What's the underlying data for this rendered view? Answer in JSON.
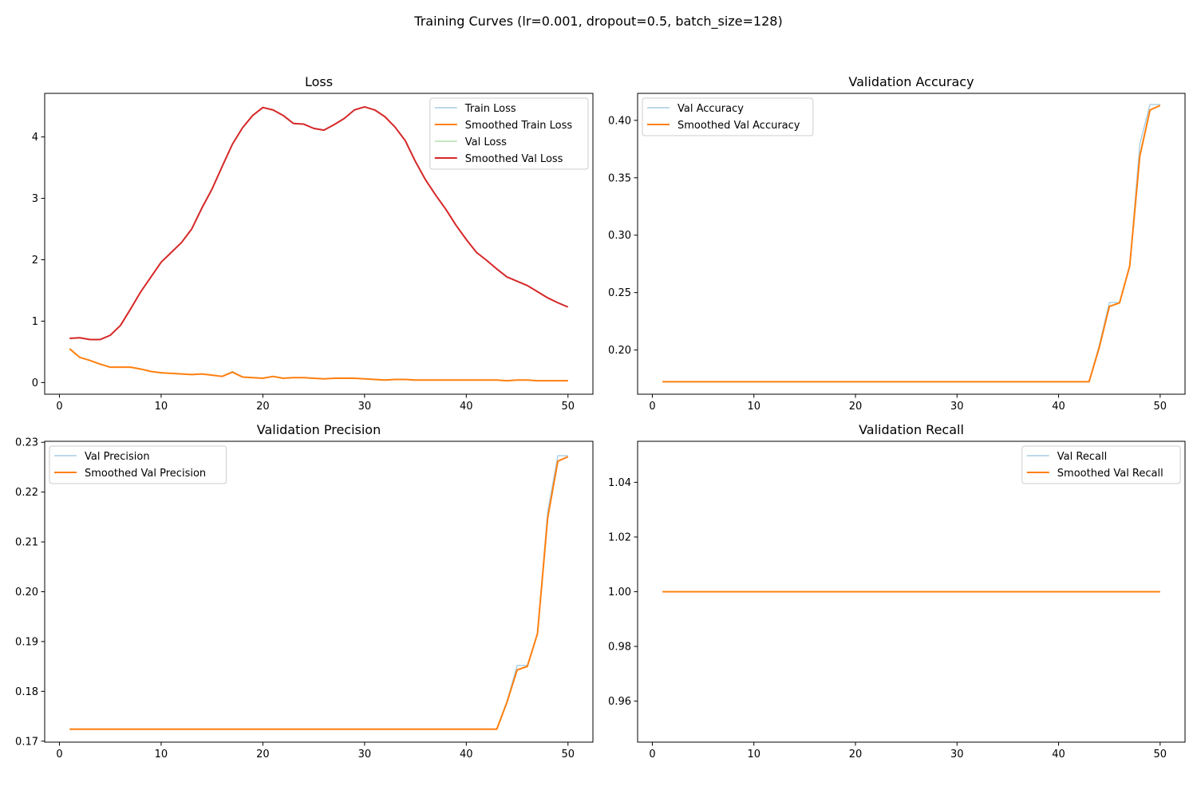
{
  "figure": {
    "suptitle": "Training Curves (lr=0.001, dropout=0.5, batch_size=128)"
  },
  "chart_data": [
    {
      "type": "line",
      "title": "Loss",
      "xlabel": "",
      "ylabel": "",
      "xlim": [
        -1.45,
        52.45
      ],
      "ylim": [
        -0.19,
        4.71
      ],
      "xticks": [
        0,
        10,
        20,
        30,
        40,
        50
      ],
      "yticks": [
        0,
        1,
        2,
        3,
        4
      ],
      "yprecision": 0,
      "grid": false,
      "legend_position": "top-right",
      "x": [
        1,
        2,
        3,
        4,
        5,
        6,
        7,
        8,
        9,
        10,
        11,
        12,
        13,
        14,
        15,
        16,
        17,
        18,
        19,
        20,
        21,
        22,
        23,
        24,
        25,
        26,
        27,
        28,
        29,
        30,
        31,
        32,
        33,
        34,
        35,
        36,
        37,
        38,
        39,
        40,
        41,
        42,
        43,
        44,
        45,
        46,
        47,
        48,
        49,
        50
      ],
      "series": [
        {
          "name": "Train Loss",
          "color": "#a6cee3",
          "width": 1.4,
          "values": [
            0.55,
            0.41,
            0.36,
            0.3,
            0.25,
            0.25,
            0.25,
            0.22,
            0.18,
            0.16,
            0.15,
            0.14,
            0.13,
            0.14,
            0.12,
            0.1,
            0.18,
            0.09,
            0.08,
            0.07,
            0.1,
            0.07,
            0.08,
            0.08,
            0.07,
            0.06,
            0.07,
            0.07,
            0.07,
            0.06,
            0.05,
            0.04,
            0.05,
            0.05,
            0.04,
            0.04,
            0.04,
            0.04,
            0.04,
            0.04,
            0.04,
            0.04,
            0.04,
            0.03,
            0.04,
            0.04,
            0.03,
            0.03,
            0.03,
            0.03
          ]
        },
        {
          "name": "Smoothed Train Loss",
          "color": "#ff7f0e",
          "width": 2,
          "values": [
            0.55,
            0.41,
            0.36,
            0.3,
            0.25,
            0.25,
            0.25,
            0.22,
            0.18,
            0.16,
            0.15,
            0.14,
            0.13,
            0.14,
            0.12,
            0.1,
            0.17,
            0.09,
            0.08,
            0.07,
            0.1,
            0.07,
            0.08,
            0.08,
            0.07,
            0.06,
            0.07,
            0.07,
            0.07,
            0.06,
            0.05,
            0.04,
            0.05,
            0.05,
            0.04,
            0.04,
            0.04,
            0.04,
            0.04,
            0.04,
            0.04,
            0.04,
            0.04,
            0.03,
            0.04,
            0.04,
            0.03,
            0.03,
            0.03,
            0.03
          ]
        },
        {
          "name": "Val Loss",
          "color": "#b2dfaa",
          "width": 1.4,
          "values": [
            0.72,
            0.73,
            0.7,
            0.7,
            0.77,
            0.93,
            1.2,
            1.48,
            1.72,
            1.96,
            2.12,
            2.28,
            2.5,
            2.85,
            3.15,
            3.52,
            3.88,
            4.15,
            4.35,
            4.48,
            4.44,
            4.35,
            4.22,
            4.21,
            4.14,
            4.11,
            4.2,
            4.3,
            4.44,
            4.49,
            4.44,
            4.33,
            4.16,
            3.94,
            3.6,
            3.3,
            3.05,
            2.82,
            2.56,
            2.33,
            2.12,
            1.99,
            1.85,
            1.72,
            1.65,
            1.58,
            1.48,
            1.38,
            1.3,
            1.23
          ]
        },
        {
          "name": "Smoothed Val Loss",
          "color": "#d62728",
          "width": 2,
          "values": [
            0.72,
            0.73,
            0.7,
            0.7,
            0.77,
            0.93,
            1.2,
            1.48,
            1.72,
            1.96,
            2.12,
            2.28,
            2.5,
            2.84,
            3.15,
            3.52,
            3.88,
            4.15,
            4.35,
            4.48,
            4.44,
            4.35,
            4.22,
            4.21,
            4.14,
            4.11,
            4.2,
            4.3,
            4.44,
            4.49,
            4.44,
            4.33,
            4.16,
            3.94,
            3.6,
            3.3,
            3.05,
            2.82,
            2.56,
            2.33,
            2.12,
            1.99,
            1.85,
            1.72,
            1.65,
            1.58,
            1.48,
            1.38,
            1.3,
            1.23
          ]
        }
      ]
    },
    {
      "type": "line",
      "title": "Validation Accuracy",
      "xlabel": "",
      "ylabel": "",
      "xlim": [
        -1.45,
        52.45
      ],
      "ylim": [
        0.1615,
        0.4235
      ],
      "xticks": [
        0,
        10,
        20,
        30,
        40,
        50
      ],
      "yticks": [
        0.2,
        0.25,
        0.3,
        0.35,
        0.4
      ],
      "yprecision": 2,
      "grid": false,
      "legend_position": "top-left",
      "x": [
        1,
        2,
        3,
        4,
        5,
        6,
        7,
        8,
        9,
        10,
        11,
        12,
        13,
        14,
        15,
        16,
        17,
        18,
        19,
        20,
        21,
        22,
        23,
        24,
        25,
        26,
        27,
        28,
        29,
        30,
        31,
        32,
        33,
        34,
        35,
        36,
        37,
        38,
        39,
        40,
        41,
        42,
        43,
        44,
        45,
        46,
        47,
        48,
        49,
        50
      ],
      "series": [
        {
          "name": "Val Accuracy",
          "color": "#a6cee3",
          "width": 1.4,
          "values": [
            0.1724,
            0.1724,
            0.1724,
            0.1724,
            0.1724,
            0.1724,
            0.1724,
            0.1724,
            0.1724,
            0.1724,
            0.1724,
            0.1724,
            0.1724,
            0.1724,
            0.1724,
            0.1724,
            0.1724,
            0.1724,
            0.1724,
            0.1724,
            0.1724,
            0.1724,
            0.1724,
            0.1724,
            0.1724,
            0.1724,
            0.1724,
            0.1724,
            0.1724,
            0.1724,
            0.1724,
            0.1724,
            0.1724,
            0.1724,
            0.1724,
            0.1724,
            0.1724,
            0.1724,
            0.1724,
            0.1724,
            0.1724,
            0.1724,
            0.1724,
            0.204,
            0.2414,
            0.2414,
            0.273,
            0.3793,
            0.4138,
            0.4138
          ]
        },
        {
          "name": "Smoothed Val Accuracy",
          "color": "#ff7f0e",
          "width": 2,
          "values": [
            0.1724,
            0.1724,
            0.1724,
            0.1724,
            0.1724,
            0.1724,
            0.1724,
            0.1724,
            0.1724,
            0.1724,
            0.1724,
            0.1724,
            0.1724,
            0.1724,
            0.1724,
            0.1724,
            0.1724,
            0.1724,
            0.1724,
            0.1724,
            0.1724,
            0.1724,
            0.1724,
            0.1724,
            0.1724,
            0.1724,
            0.1724,
            0.1724,
            0.1724,
            0.1724,
            0.1724,
            0.1724,
            0.1724,
            0.1724,
            0.1724,
            0.1724,
            0.1724,
            0.1724,
            0.1724,
            0.1724,
            0.1724,
            0.1724,
            0.1724,
            0.202,
            0.238,
            0.241,
            0.273,
            0.369,
            0.409,
            0.413
          ]
        }
      ]
    },
    {
      "type": "line",
      "title": "Validation Precision",
      "xlabel": "",
      "ylabel": "",
      "xlim": [
        -1.45,
        52.45
      ],
      "ylim": [
        0.1698,
        0.2302
      ],
      "xticks": [
        0,
        10,
        20,
        30,
        40,
        50
      ],
      "yticks": [
        0.17,
        0.18,
        0.19,
        0.2,
        0.21,
        0.22,
        0.23
      ],
      "yprecision": 2,
      "grid": false,
      "legend_position": "top-left",
      "x": [
        1,
        2,
        3,
        4,
        5,
        6,
        7,
        8,
        9,
        10,
        11,
        12,
        13,
        14,
        15,
        16,
        17,
        18,
        19,
        20,
        21,
        22,
        23,
        24,
        25,
        26,
        27,
        28,
        29,
        30,
        31,
        32,
        33,
        34,
        35,
        36,
        37,
        38,
        39,
        40,
        41,
        42,
        43,
        44,
        45,
        46,
        47,
        48,
        49,
        50
      ],
      "series": [
        {
          "name": "Val Precision",
          "color": "#a6cee3",
          "width": 1.4,
          "values": [
            0.1724,
            0.1724,
            0.1724,
            0.1724,
            0.1724,
            0.1724,
            0.1724,
            0.1724,
            0.1724,
            0.1724,
            0.1724,
            0.1724,
            0.1724,
            0.1724,
            0.1724,
            0.1724,
            0.1724,
            0.1724,
            0.1724,
            0.1724,
            0.1724,
            0.1724,
            0.1724,
            0.1724,
            0.1724,
            0.1724,
            0.1724,
            0.1724,
            0.1724,
            0.1724,
            0.1724,
            0.1724,
            0.1724,
            0.1724,
            0.1724,
            0.1724,
            0.1724,
            0.1724,
            0.1724,
            0.1724,
            0.1724,
            0.1724,
            0.1724,
            0.178,
            0.1852,
            0.1852,
            0.1916,
            0.216,
            0.2273,
            0.2273
          ]
        },
        {
          "name": "Smoothed Val Precision",
          "color": "#ff7f0e",
          "width": 2,
          "values": [
            0.1724,
            0.1724,
            0.1724,
            0.1724,
            0.1724,
            0.1724,
            0.1724,
            0.1724,
            0.1724,
            0.1724,
            0.1724,
            0.1724,
            0.1724,
            0.1724,
            0.1724,
            0.1724,
            0.1724,
            0.1724,
            0.1724,
            0.1724,
            0.1724,
            0.1724,
            0.1724,
            0.1724,
            0.1724,
            0.1724,
            0.1724,
            0.1724,
            0.1724,
            0.1724,
            0.1724,
            0.1724,
            0.1724,
            0.1724,
            0.1724,
            0.1724,
            0.1724,
            0.1724,
            0.1724,
            0.1724,
            0.1724,
            0.1724,
            0.1724,
            0.1778,
            0.1843,
            0.185,
            0.1916,
            0.2148,
            0.2262,
            0.2271
          ]
        }
      ]
    },
    {
      "type": "line",
      "title": "Validation Recall",
      "xlabel": "",
      "ylabel": "",
      "xlim": [
        -1.45,
        52.45
      ],
      "ylim": [
        0.945,
        1.055
      ],
      "xticks": [
        0,
        10,
        20,
        30,
        40,
        50
      ],
      "yticks": [
        0.96,
        0.98,
        1.0,
        1.02,
        1.04
      ],
      "yprecision": 2,
      "grid": false,
      "legend_position": "top-right",
      "x": [
        1,
        2,
        3,
        4,
        5,
        6,
        7,
        8,
        9,
        10,
        11,
        12,
        13,
        14,
        15,
        16,
        17,
        18,
        19,
        20,
        21,
        22,
        23,
        24,
        25,
        26,
        27,
        28,
        29,
        30,
        31,
        32,
        33,
        34,
        35,
        36,
        37,
        38,
        39,
        40,
        41,
        42,
        43,
        44,
        45,
        46,
        47,
        48,
        49,
        50
      ],
      "series": [
        {
          "name": "Val Recall",
          "color": "#a6cee3",
          "width": 1.4,
          "values": [
            1,
            1,
            1,
            1,
            1,
            1,
            1,
            1,
            1,
            1,
            1,
            1,
            1,
            1,
            1,
            1,
            1,
            1,
            1,
            1,
            1,
            1,
            1,
            1,
            1,
            1,
            1,
            1,
            1,
            1,
            1,
            1,
            1,
            1,
            1,
            1,
            1,
            1,
            1,
            1,
            1,
            1,
            1,
            1,
            1,
            1,
            1,
            1,
            1,
            1
          ]
        },
        {
          "name": "Smoothed Val Recall",
          "color": "#ff7f0e",
          "width": 2,
          "values": [
            1,
            1,
            1,
            1,
            1,
            1,
            1,
            1,
            1,
            1,
            1,
            1,
            1,
            1,
            1,
            1,
            1,
            1,
            1,
            1,
            1,
            1,
            1,
            1,
            1,
            1,
            1,
            1,
            1,
            1,
            1,
            1,
            1,
            1,
            1,
            1,
            1,
            1,
            1,
            1,
            1,
            1,
            1,
            1,
            1,
            1,
            1,
            1,
            1,
            1
          ]
        }
      ]
    }
  ]
}
